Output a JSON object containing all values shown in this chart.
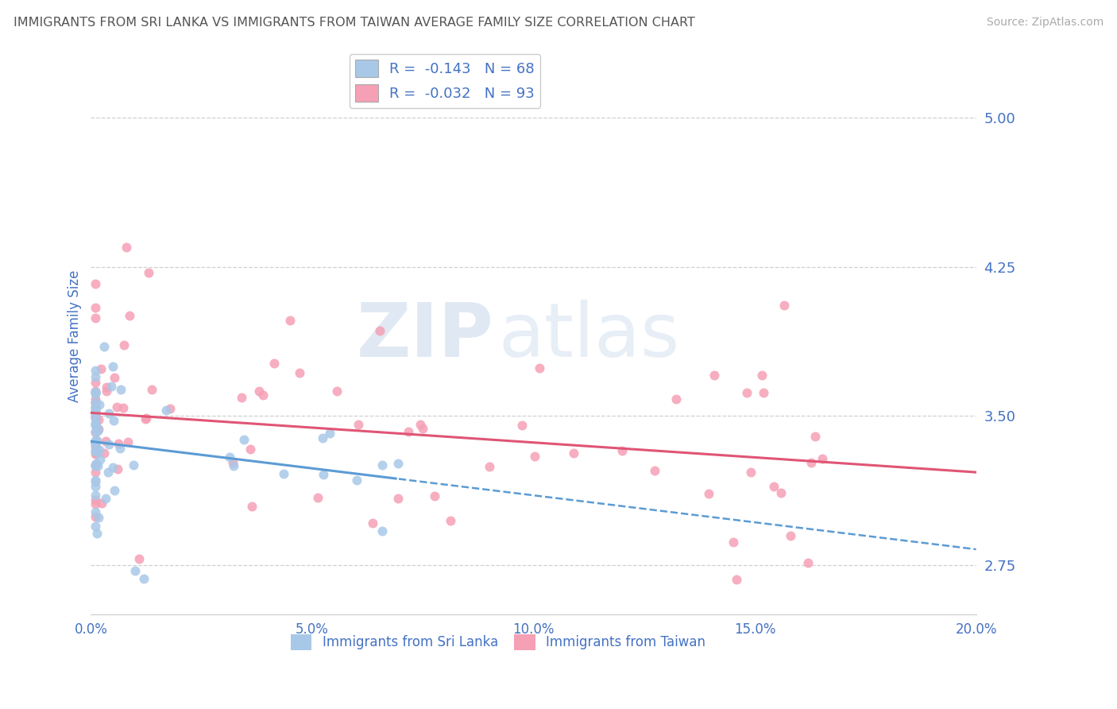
{
  "title": "IMMIGRANTS FROM SRI LANKA VS IMMIGRANTS FROM TAIWAN AVERAGE FAMILY SIZE CORRELATION CHART",
  "source": "Source: ZipAtlas.com",
  "ylabel": "Average Family Size",
  "xlim": [
    0.0,
    0.2
  ],
  "ylim": [
    2.5,
    5.3
  ],
  "yticks": [
    2.75,
    3.5,
    4.25,
    5.0
  ],
  "xticks": [
    0.0,
    0.05,
    0.1,
    0.15,
    0.2
  ],
  "xtick_labels": [
    "0.0%",
    "5.0%",
    "10.0%",
    "15.0%",
    "20.0%"
  ],
  "sri_lanka_color": "#a8c8e8",
  "taiwan_color": "#f5a0b5",
  "sri_lanka_line_color": "#5b9bd5",
  "taiwan_line_color": "#e05575",
  "sri_lanka_R": -0.143,
  "sri_lanka_N": 68,
  "taiwan_R": -0.032,
  "taiwan_N": 93,
  "watermark_zip": "ZIP",
  "watermark_atlas": "atlas",
  "background_color": "#ffffff",
  "grid_color": "#d0d0d0",
  "axis_label_color": "#4472c4",
  "legend_labels": [
    "Immigrants from Sri Lanka",
    "Immigrants from Taiwan"
  ]
}
